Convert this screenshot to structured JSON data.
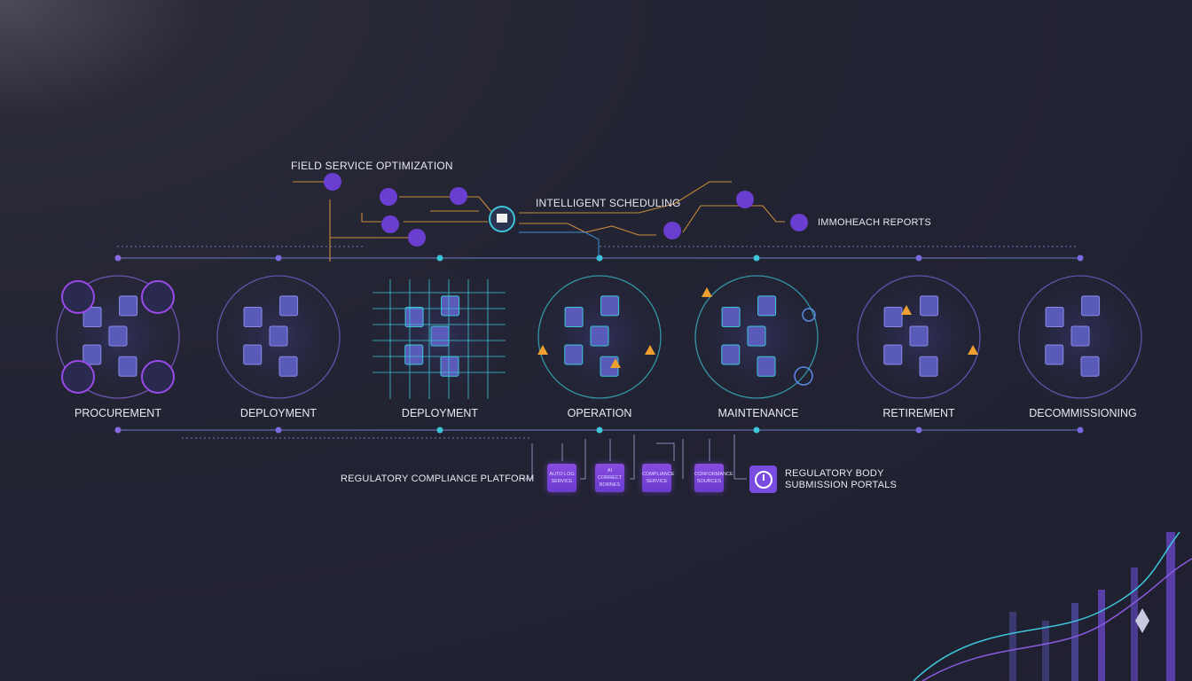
{
  "field_service": {
    "title": "FIELD SERVICE OPTIMIZATION",
    "scheduling_label": "INTELLIGENT SCHEDULING",
    "reports_label": "IMMOHEACH REPORTS"
  },
  "stages": [
    {
      "label": "PROCUREMENT"
    },
    {
      "label": "DEPLOYMENT"
    },
    {
      "label": "DEPLOYMENT"
    },
    {
      "label": "OPERATION"
    },
    {
      "label": "MAINTENANCE"
    },
    {
      "label": "RETIREMENT"
    },
    {
      "label": "DECOMMISSIONING"
    }
  ],
  "compliance": {
    "title": "REGULATORY COMPLIANCE PLATFORM",
    "boxes": [
      {
        "line1": "AUTO LOG",
        "line2": "SERVICE"
      },
      {
        "line1": "AI CORRECT",
        "line2": "BORNES"
      },
      {
        "line1": "COMPLIANCE",
        "line2": "SERVICE"
      },
      {
        "line1": "CONFORMANCE",
        "line2": "SOURCES"
      }
    ],
    "portal_line1": "REGULATORY BODY",
    "portal_line2": "SUBMISSION PORTALS"
  },
  "colors": {
    "accent_cyan": "#3cc6d8",
    "accent_purple": "#7a4be0",
    "accent_orange": "#d9913a",
    "background": "#232433"
  }
}
